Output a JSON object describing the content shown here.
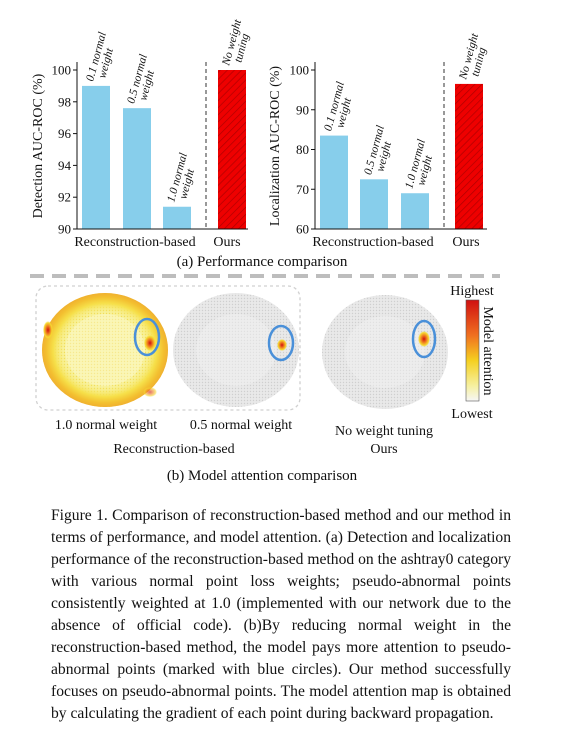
{
  "panel_a": {
    "caption": "(a) Performance comparison",
    "charts": [
      {
        "ylabel": "Detection AUC-ROC (%)",
        "ylim": [
          90,
          100
        ],
        "ticks": [
          "90",
          "92",
          "94",
          "96",
          "98",
          "100"
        ],
        "tick_values": [
          90,
          92,
          94,
          96,
          98,
          100
        ]
      },
      {
        "ylabel": "Localization AUC-ROC (%)",
        "ylim": [
          60,
          100
        ],
        "ticks": [
          "60",
          "70",
          "80",
          "90",
          "100"
        ],
        "tick_values": [
          60,
          70,
          80,
          90,
          100
        ]
      }
    ],
    "group_label_left": "Reconstruction-based",
    "group_label_right": "Ours"
  },
  "chart_data": [
    {
      "type": "bar",
      "categories": [
        "0.1 normal weight",
        "0.5 normal weight",
        "1.0 normal weight",
        "No weight tuning"
      ],
      "values": [
        99.0,
        97.6,
        91.4,
        100.0
      ],
      "ylabel": "Detection AUC-ROC (%)",
      "ylim": [
        90,
        100
      ],
      "colors": [
        "#87ceeb",
        "#87ceeb",
        "#87ceeb",
        "#ee0000"
      ],
      "xgroups": [
        "Reconstruction-based",
        "Ours"
      ]
    },
    {
      "type": "bar",
      "categories": [
        "0.1 normal weight",
        "0.5 normal weight",
        "1.0 normal weight",
        "No weight tuning"
      ],
      "values": [
        83.5,
        72.5,
        69.0,
        96.5
      ],
      "ylabel": "Localization AUC-ROC (%)",
      "ylim": [
        60,
        100
      ],
      "colors": [
        "#87ceeb",
        "#87ceeb",
        "#87ceeb",
        "#ee0000"
      ],
      "xgroups": [
        "Reconstruction-based",
        "Ours"
      ]
    }
  ],
  "panel_b": {
    "caption": "(b) Model attention comparison",
    "maps": [
      {
        "label": "1.0 normal weight"
      },
      {
        "label": "0.5 normal weight"
      },
      {
        "label": "No weight tuning"
      }
    ],
    "group_left": "Reconstruction-based",
    "group_right": "Ours",
    "colorbar": {
      "title": "Model attention",
      "high": "Highest",
      "low": "Lowest"
    },
    "marker_color": "#4a90d9"
  },
  "caption": {
    "text": "Figure 1.  Comparison of reconstruction-based method and our method in terms of performance, and model attention.  (a) Detection and localization performance of the reconstruction-based method on the ashtray0 category with various normal point loss weights; pseudo-abnormal points consistently weighted at 1.0 (implemented with our network due to the absence of official code). (b)By reducing normal weight in the reconstruction-based method, the model pays more attention to pseudo-abnormal points (marked with blue circles).  Our method successfully focuses on pseudo-abnormal points.  The model attention map is obtained by calculating the gradient of each point during backward propagation."
  }
}
